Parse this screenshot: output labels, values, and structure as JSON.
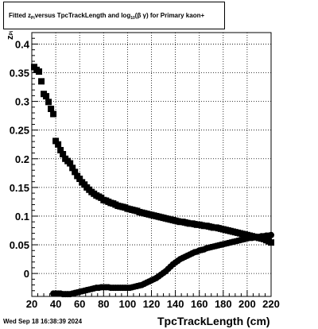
{
  "title": {
    "part1": "Fitted  z",
    "sub1": "Pi",
    "part2": "  versus TpcTrackLength and log",
    "sub2": "10",
    "part3": " (β  γ) for Primary kaon+"
  },
  "datestamp": "Wed Sep 18 16:38:39 2024",
  "chart_data": {
    "type": "scatter",
    "title": "Fitted zPi versus TpcTrackLength and log10(β γ) for Primary kaon+",
    "xlabel": "TpcTrackLength (cm)",
    "ylabel": "zPi",
    "xlim": [
      20,
      220
    ],
    "ylim": [
      -0.04,
      0.42
    ],
    "xticks": [
      20,
      40,
      60,
      80,
      100,
      120,
      140,
      160,
      180,
      200,
      220
    ],
    "xtick_labels": [
      "20",
      "40",
      "60",
      "80",
      "100",
      "120",
      "140",
      "160",
      "180",
      "200",
      "220"
    ],
    "yticks": [
      0,
      0.05,
      0.1,
      0.15,
      0.2,
      0.25,
      0.3,
      0.35,
      0.4
    ],
    "ytick_labels": [
      "0",
      "0.05",
      "0.1",
      "0.15",
      "0.2",
      "0.25",
      "0.3",
      "0.35",
      "0.4"
    ],
    "grid": true,
    "marker_color": "#000000",
    "series": [
      {
        "marker": "square",
        "x": [
          22,
          24,
          26,
          28,
          30,
          32,
          34,
          36,
          38,
          40,
          42,
          44,
          46,
          48,
          50,
          52,
          54,
          56,
          58,
          60,
          62,
          64,
          66,
          68,
          70,
          72,
          74,
          76,
          78,
          80,
          82,
          84,
          86,
          88,
          90,
          92,
          94,
          96,
          98,
          100,
          102,
          104,
          106,
          108,
          110,
          112,
          114,
          116,
          118,
          120,
          122,
          124,
          126,
          128,
          130,
          132,
          134,
          136,
          138,
          140,
          142,
          144,
          146,
          148,
          150,
          152,
          154,
          156,
          158,
          160,
          162,
          164,
          166,
          168,
          170,
          172,
          174,
          176,
          178,
          180,
          182,
          184,
          186,
          188,
          190,
          192,
          194,
          196,
          198,
          200,
          202,
          204,
          206,
          208,
          210,
          212,
          214,
          216,
          218,
          220
        ],
        "y": [
          0.36,
          0.355,
          0.352,
          0.335,
          0.313,
          0.309,
          0.299,
          0.287,
          0.278,
          0.231,
          0.225,
          0.215,
          0.208,
          0.2,
          0.196,
          0.192,
          0.184,
          0.177,
          0.17,
          0.165,
          0.159,
          0.155,
          0.15,
          0.146,
          0.142,
          0.139,
          0.136,
          0.134,
          0.132,
          0.128,
          0.127,
          0.125,
          0.123,
          0.122,
          0.12,
          0.118,
          0.117,
          0.116,
          0.115,
          0.113,
          0.112,
          0.111,
          0.11,
          0.109,
          0.107,
          0.106,
          0.105,
          0.104,
          0.103,
          0.102,
          0.101,
          0.1,
          0.099,
          0.098,
          0.097,
          0.096,
          0.095,
          0.094,
          0.093,
          0.092,
          0.091,
          0.09,
          0.09,
          0.089,
          0.088,
          0.087,
          0.087,
          0.086,
          0.085,
          0.085,
          0.084,
          0.083,
          0.083,
          0.082,
          0.081,
          0.08,
          0.08,
          0.079,
          0.078,
          0.077,
          0.076,
          0.075,
          0.074,
          0.073,
          0.072,
          0.071,
          0.07,
          0.069,
          0.068,
          0.067,
          0.066,
          0.065,
          0.064,
          0.063,
          0.062,
          0.061,
          0.06,
          0.058,
          0.056,
          0.054
        ]
      },
      {
        "marker": "circle",
        "x": [
          38,
          40,
          42,
          44,
          46,
          48,
          50,
          52,
          54,
          56,
          58,
          60,
          62,
          64,
          66,
          68,
          70,
          72,
          74,
          76,
          78,
          80,
          82,
          84,
          86,
          88,
          90,
          92,
          94,
          96,
          98,
          100,
          102,
          104,
          106,
          108,
          110,
          112,
          114,
          116,
          118,
          120,
          122,
          124,
          126,
          128,
          130,
          132,
          134,
          136,
          138,
          140,
          142,
          144,
          146,
          148,
          150,
          152,
          154,
          156,
          158,
          160,
          162,
          164,
          166,
          168,
          170,
          172,
          174,
          176,
          178,
          180,
          182,
          184,
          186,
          188,
          190,
          192,
          194,
          196,
          198,
          200,
          202,
          204,
          206,
          208,
          210,
          212,
          214,
          216,
          218,
          220
        ],
        "y": [
          -0.035,
          -0.035,
          -0.035,
          -0.035,
          -0.036,
          -0.036,
          -0.036,
          -0.036,
          -0.035,
          -0.034,
          -0.033,
          -0.032,
          -0.031,
          -0.03,
          -0.029,
          -0.028,
          -0.027,
          -0.026,
          -0.025,
          -0.025,
          -0.024,
          -0.024,
          -0.024,
          -0.024,
          -0.025,
          -0.025,
          -0.025,
          -0.025,
          -0.025,
          -0.025,
          -0.025,
          -0.025,
          -0.025,
          -0.024,
          -0.023,
          -0.022,
          -0.021,
          -0.02,
          -0.018,
          -0.016,
          -0.014,
          -0.012,
          -0.01,
          -0.008,
          -0.005,
          -0.002,
          0.001,
          0.004,
          0.008,
          0.012,
          0.016,
          0.019,
          0.022,
          0.025,
          0.027,
          0.029,
          0.031,
          0.033,
          0.035,
          0.037,
          0.038,
          0.04,
          0.041,
          0.042,
          0.044,
          0.045,
          0.046,
          0.047,
          0.048,
          0.049,
          0.05,
          0.051,
          0.052,
          0.053,
          0.054,
          0.055,
          0.056,
          0.057,
          0.058,
          0.059,
          0.06,
          0.061,
          0.062,
          0.062,
          0.063,
          0.063,
          0.064,
          0.065,
          0.065,
          0.066,
          0.066,
          0.067
        ]
      }
    ]
  }
}
